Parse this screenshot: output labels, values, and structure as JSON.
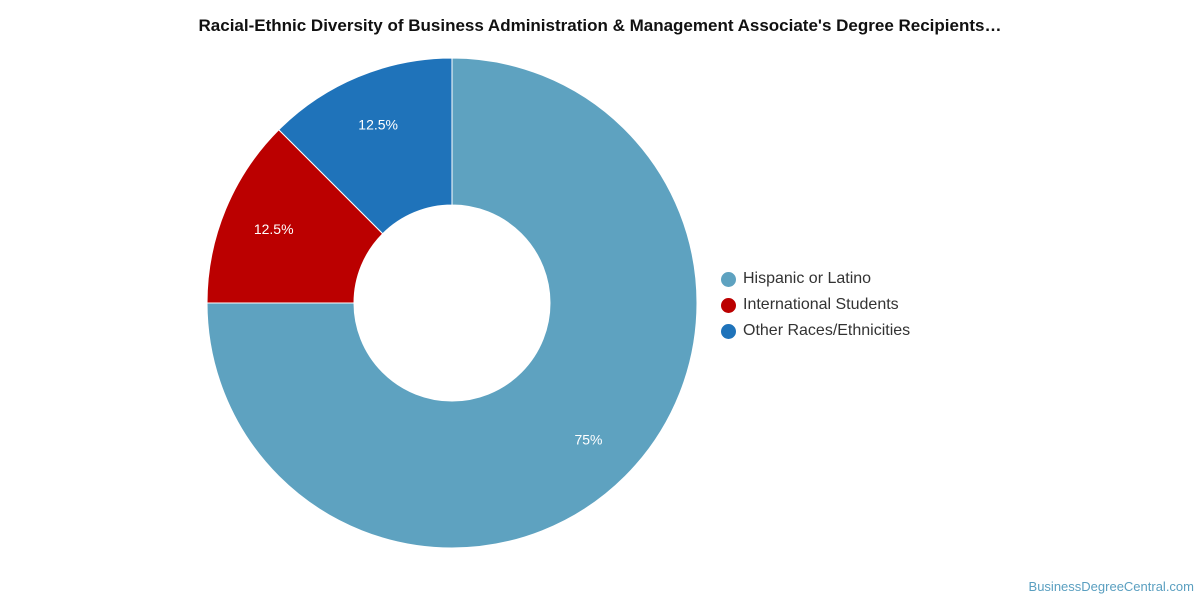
{
  "chart_data": {
    "type": "pie",
    "title": "Racial-Ethnic Diversity of Business Administration & Management Associate's Degree Recipients…",
    "donut": true,
    "categories": [
      "Hispanic or Latino",
      "International Students",
      "Other Races/Ethnicities"
    ],
    "values": [
      75,
      12.5,
      12.5
    ],
    "labels": [
      "75%",
      "12.5%",
      "12.5%"
    ],
    "colors": [
      "#5ea2c0",
      "#bb0000",
      "#1f73ba"
    ],
    "legend": "right"
  },
  "watermark": "BusinessDegreeCentral.com"
}
